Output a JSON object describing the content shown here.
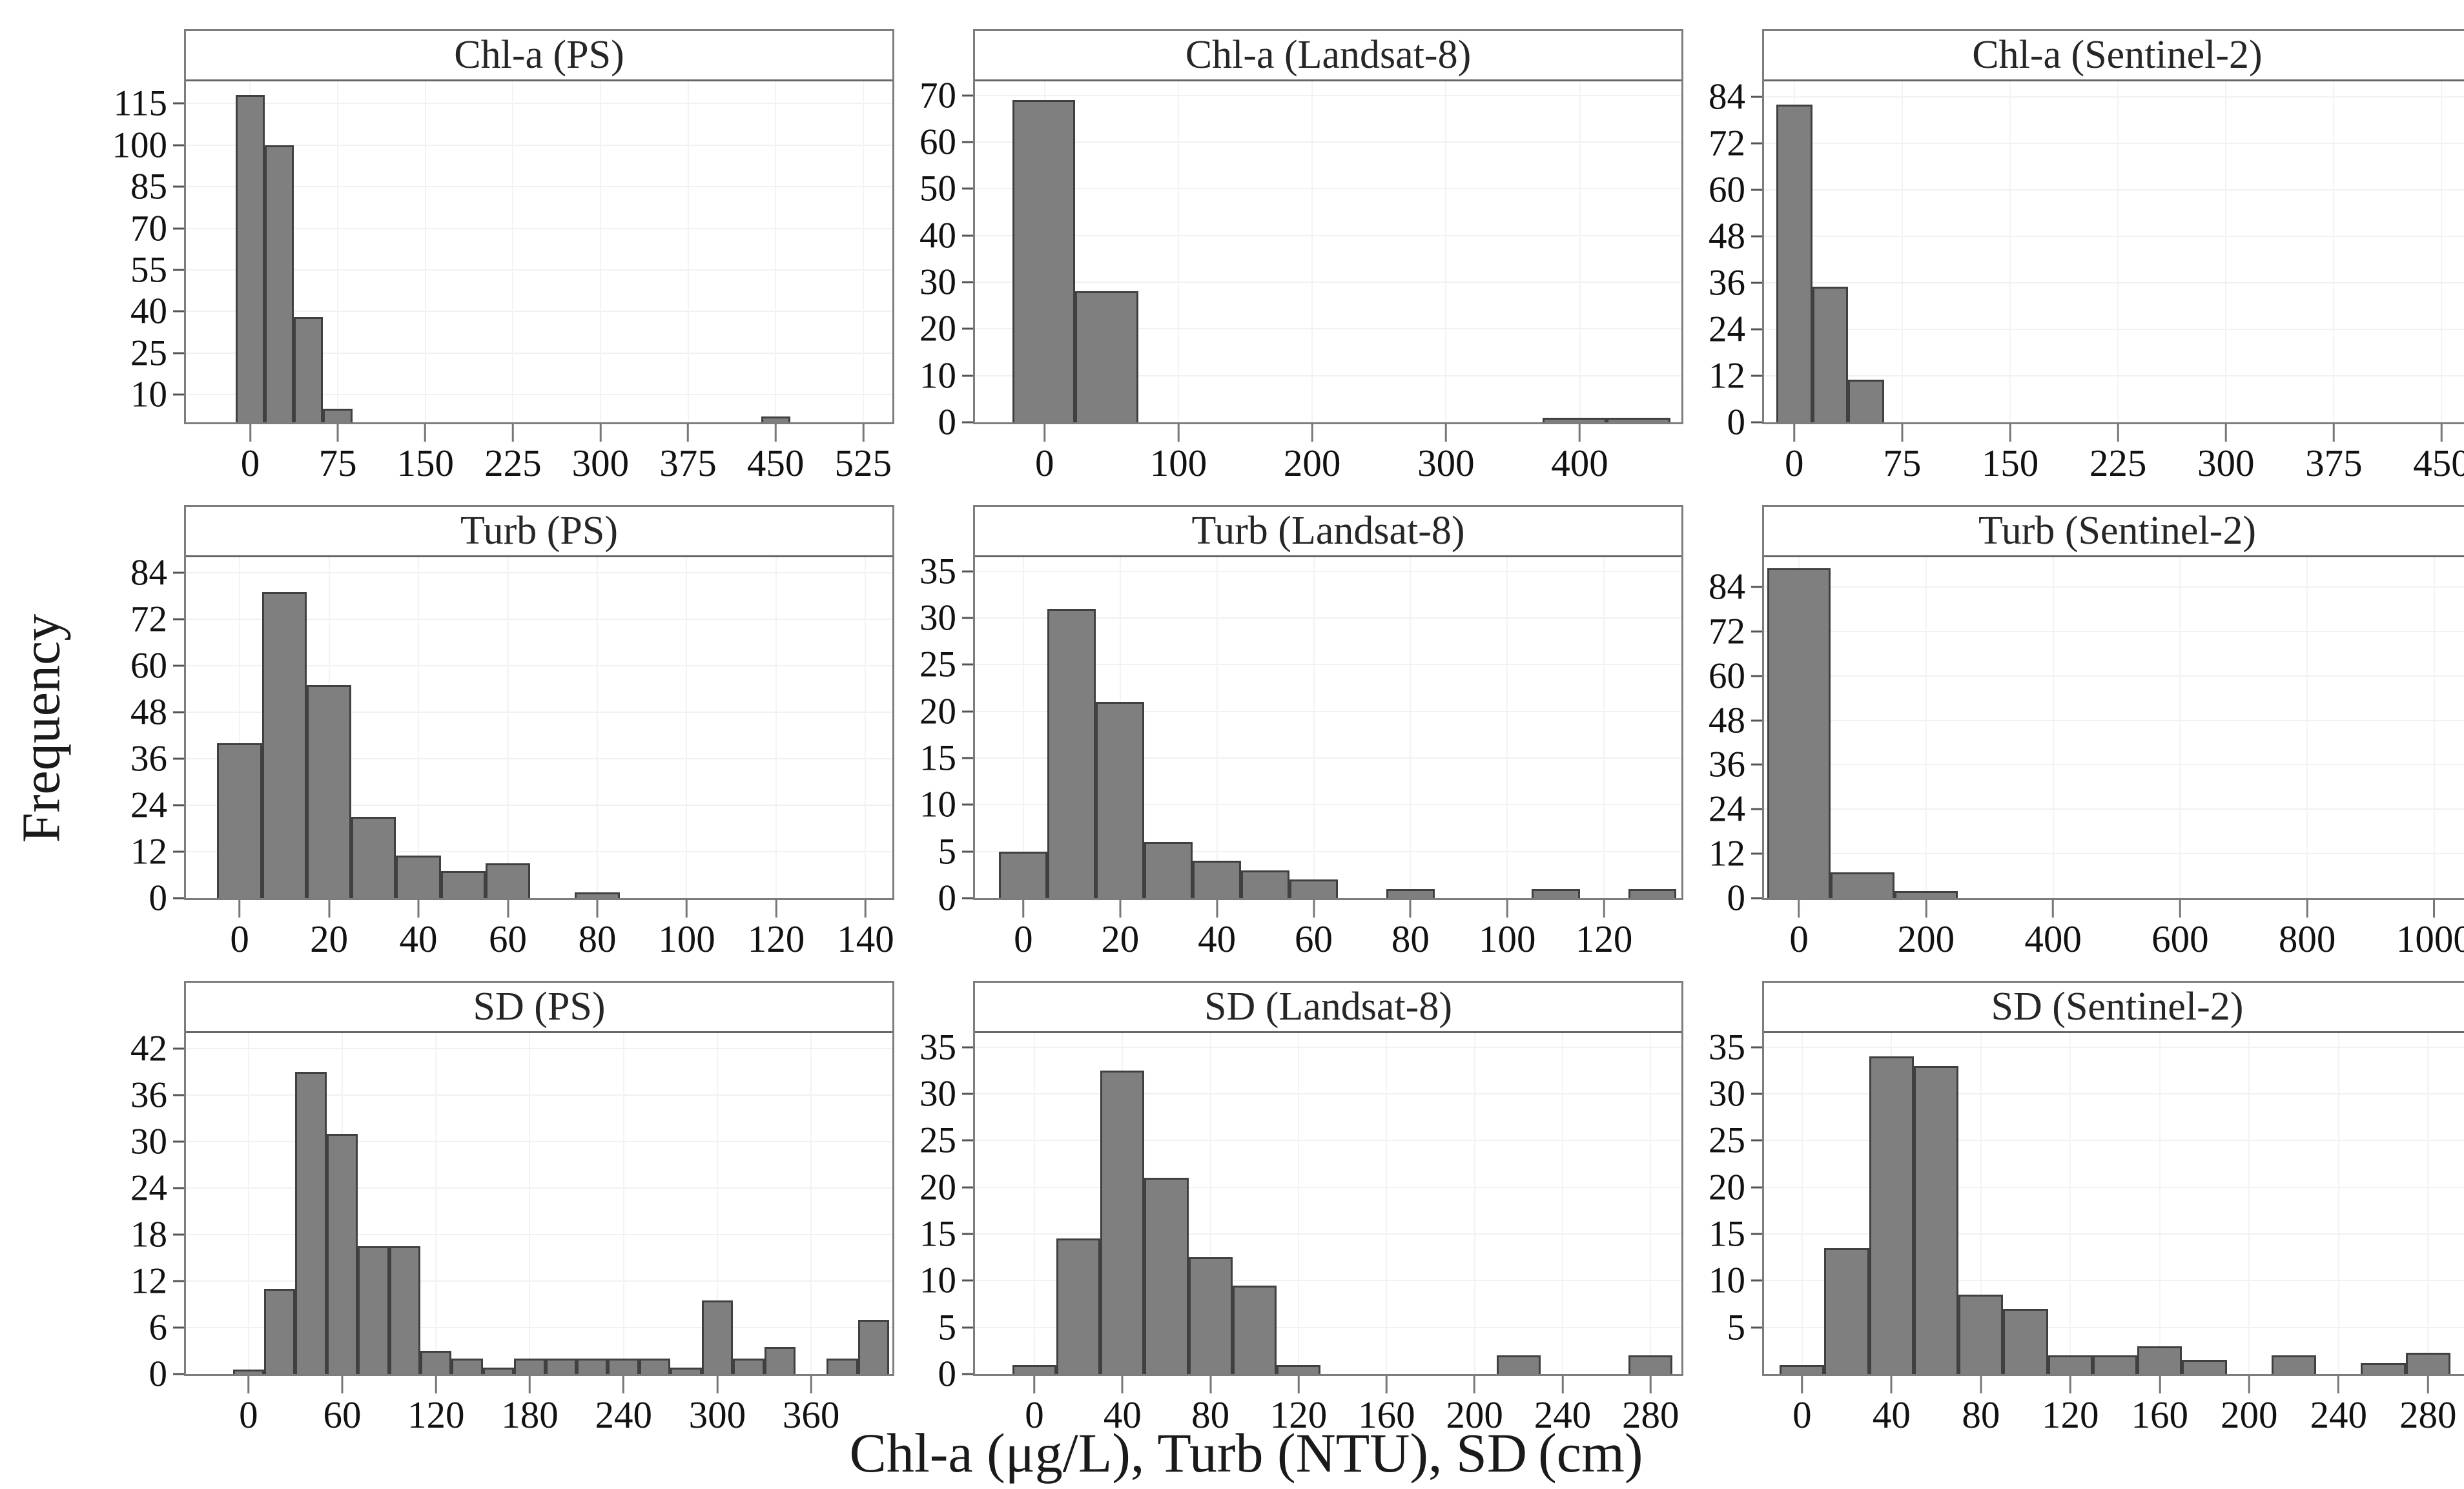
{
  "figure": {
    "ylabel": "Frequency",
    "xlabel": "Chl-a (μg/L), Turb (NTU), SD (cm)",
    "colors": {
      "bar_fill": "#7f7f7f",
      "bar_stroke": "#404040",
      "panel_border": "#7d7d7d",
      "strip_border": "#666666",
      "grid": "#f1f1f1",
      "text": "#1a1a1a"
    },
    "layout": {
      "rows": 3,
      "cols": 3,
      "grid": true,
      "legend": "none"
    }
  },
  "chart_data": [
    {
      "type": "bar",
      "subtype": "histogram",
      "title": "Chl-a (PS)",
      "xlim": [
        -55,
        550
      ],
      "ylim": [
        0,
        123
      ],
      "x_ticks": [
        0,
        75,
        150,
        225,
        300,
        375,
        450,
        525
      ],
      "y_ticks": [
        10,
        25,
        40,
        55,
        70,
        85,
        100,
        115
      ],
      "bars": [
        [
          -12.5,
          12.5,
          118
        ],
        [
          12.5,
          37.5,
          100
        ],
        [
          37.5,
          62.5,
          38
        ],
        [
          62.5,
          87.5,
          5
        ],
        [
          437.5,
          462.5,
          2
        ]
      ]
    },
    {
      "type": "bar",
      "subtype": "histogram",
      "title": "Chl-a (Landsat-8)",
      "xlim": [
        -52,
        476
      ],
      "ylim": [
        0,
        73
      ],
      "x_ticks": [
        0,
        100,
        200,
        300,
        400
      ],
      "y_ticks": [
        0,
        10,
        20,
        30,
        40,
        50,
        60,
        70
      ],
      "bars": [
        [
          -24,
          23,
          69
        ],
        [
          23,
          70,
          28
        ],
        [
          372,
          420,
          1
        ],
        [
          420,
          468,
          1
        ]
      ]
    },
    {
      "type": "bar",
      "subtype": "histogram",
      "title": "Chl-a (Sentinel-2)",
      "xlim": [
        -21,
        470
      ],
      "ylim": [
        0,
        88
      ],
      "x_ticks": [
        0,
        75,
        150,
        225,
        300,
        375,
        450
      ],
      "y_ticks": [
        0,
        12,
        24,
        36,
        48,
        60,
        72,
        84
      ],
      "bars": [
        [
          -12.5,
          12.5,
          82
        ],
        [
          12.5,
          37.5,
          35
        ],
        [
          37.5,
          62.5,
          11
        ]
      ]
    },
    {
      "type": "bar",
      "subtype": "histogram",
      "title": "Turb (PS)",
      "xlim": [
        -12,
        146
      ],
      "ylim": [
        0,
        88
      ],
      "x_ticks": [
        0,
        20,
        40,
        60,
        80,
        100,
        120,
        140
      ],
      "y_ticks": [
        0,
        12,
        24,
        36,
        48,
        60,
        72,
        84
      ],
      "bars": [
        [
          -5,
          5,
          40
        ],
        [
          5,
          15,
          79
        ],
        [
          15,
          25,
          55
        ],
        [
          25,
          35,
          21
        ],
        [
          35,
          45,
          11
        ],
        [
          45,
          55,
          7
        ],
        [
          55,
          65,
          9
        ],
        [
          75,
          85,
          1.5
        ]
      ]
    },
    {
      "type": "bar",
      "subtype": "histogram",
      "title": "Turb (Landsat-8)",
      "xlim": [
        -10,
        136
      ],
      "ylim": [
        0,
        36.5
      ],
      "x_ticks": [
        0,
        20,
        40,
        60,
        80,
        100,
        120
      ],
      "y_ticks": [
        0,
        5,
        10,
        15,
        20,
        25,
        30,
        35
      ],
      "bars": [
        [
          -5,
          5,
          5
        ],
        [
          5,
          15,
          31
        ],
        [
          15,
          25,
          21
        ],
        [
          25,
          35,
          6
        ],
        [
          35,
          45,
          4
        ],
        [
          45,
          55,
          3
        ],
        [
          55,
          65,
          2
        ],
        [
          75,
          85,
          1
        ],
        [
          105,
          115,
          1
        ],
        [
          125,
          135,
          1
        ]
      ]
    },
    {
      "type": "bar",
      "subtype": "histogram",
      "title": "Turb (Sentinel-2)",
      "xlim": [
        -55,
        1057
      ],
      "ylim": [
        0,
        92
      ],
      "x_ticks": [
        0,
        200,
        400,
        600,
        800,
        1000
      ],
      "y_ticks": [
        0,
        12,
        24,
        36,
        48,
        60,
        72,
        84
      ],
      "bars": [
        [
          -50,
          50,
          89
        ],
        [
          50,
          150,
          7
        ],
        [
          150,
          250,
          2
        ]
      ]
    },
    {
      "type": "bar",
      "subtype": "histogram",
      "title": "SD (PS)",
      "xlim": [
        -40,
        412
      ],
      "ylim": [
        0,
        44
      ],
      "x_ticks": [
        0,
        60,
        120,
        180,
        240,
        300,
        360
      ],
      "y_ticks": [
        0,
        6,
        12,
        18,
        24,
        30,
        36,
        42
      ],
      "bars": [
        [
          -10,
          10,
          0.6
        ],
        [
          10,
          30,
          11
        ],
        [
          30,
          50,
          39
        ],
        [
          50,
          70,
          31
        ],
        [
          70,
          90,
          16.5
        ],
        [
          90,
          110,
          16.5
        ],
        [
          110,
          130,
          3
        ],
        [
          130,
          150,
          2
        ],
        [
          150,
          170,
          0.8
        ],
        [
          170,
          190,
          2
        ],
        [
          190,
          210,
          2
        ],
        [
          210,
          230,
          2
        ],
        [
          230,
          250,
          2
        ],
        [
          250,
          270,
          2
        ],
        [
          270,
          290,
          0.8
        ],
        [
          290,
          310,
          9.5
        ],
        [
          310,
          330,
          2
        ],
        [
          330,
          350,
          3.5
        ],
        [
          370,
          390,
          2
        ],
        [
          390,
          410,
          7
        ]
      ]
    },
    {
      "type": "bar",
      "subtype": "histogram",
      "title": "SD (Landsat-8)",
      "xlim": [
        -27,
        294
      ],
      "ylim": [
        0,
        36.5
      ],
      "x_ticks": [
        0,
        40,
        80,
        120,
        160,
        200,
        240,
        280
      ],
      "y_ticks": [
        0,
        5,
        10,
        15,
        20,
        25,
        30,
        35
      ],
      "bars": [
        [
          -10,
          10,
          1
        ],
        [
          10,
          30,
          14.5
        ],
        [
          30,
          50,
          32.5
        ],
        [
          50,
          70,
          21
        ],
        [
          70,
          90,
          12.5
        ],
        [
          90,
          110,
          9.5
        ],
        [
          110,
          130,
          1
        ],
        [
          210,
          230,
          2
        ],
        [
          270,
          290,
          2
        ]
      ]
    },
    {
      "type": "bar",
      "subtype": "histogram",
      "title": "SD (Sentinel-2)",
      "xlim": [
        -17,
        299
      ],
      "ylim": [
        0,
        36.5
      ],
      "x_ticks": [
        0,
        40,
        80,
        120,
        160,
        200,
        240,
        280
      ],
      "y_ticks": [
        5,
        10,
        15,
        20,
        25,
        30,
        35
      ],
      "bars": [
        [
          -10,
          10,
          1
        ],
        [
          10,
          30,
          13.5
        ],
        [
          30,
          50,
          34
        ],
        [
          50,
          70,
          33
        ],
        [
          70,
          90,
          8.5
        ],
        [
          90,
          110,
          7
        ],
        [
          110,
          130,
          2
        ],
        [
          130,
          150,
          2
        ],
        [
          150,
          170,
          3
        ],
        [
          170,
          190,
          1.5
        ],
        [
          210,
          230,
          2
        ],
        [
          250,
          270,
          1.2
        ],
        [
          270,
          290,
          2.3
        ]
      ]
    }
  ]
}
